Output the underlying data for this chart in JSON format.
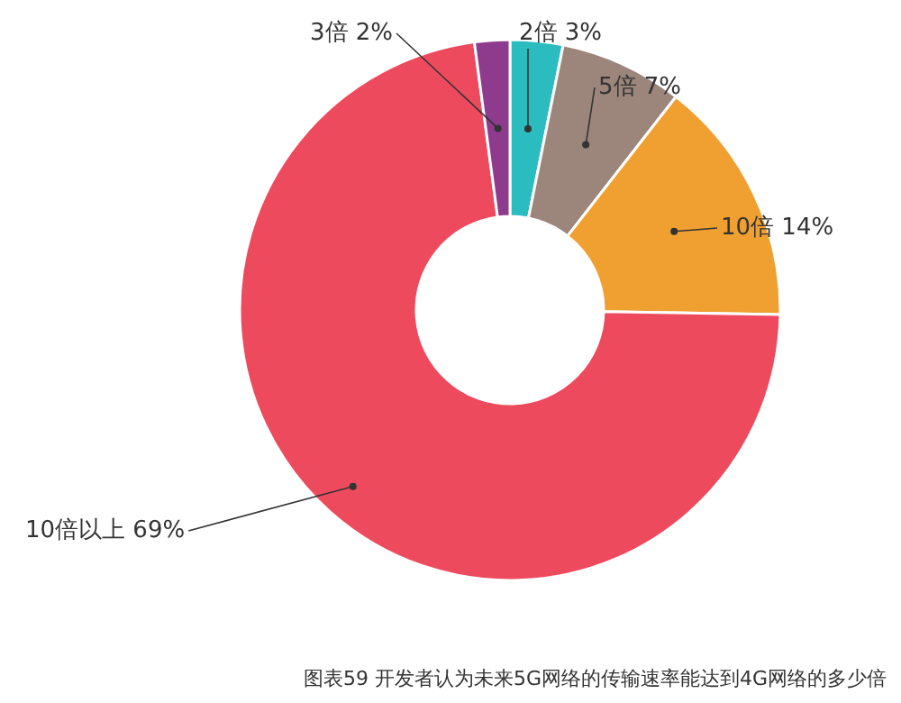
{
  "chart_data": {
    "type": "donut",
    "categories": [
      "2倍",
      "5倍",
      "10倍",
      "10倍以上",
      "3倍"
    ],
    "values": [
      3,
      7,
      14,
      69,
      2
    ],
    "value_labels": [
      "3%",
      "7%",
      "14%",
      "69%",
      "2%"
    ],
    "colors": [
      "#2bbcc0",
      "#9c857a",
      "#f0a030",
      "#ee4a5e",
      "#8e3b8e"
    ],
    "annotations": [
      "图表59 开发者认为未来5G网络的传输速率能达到4G网络的多少倍"
    ]
  }
}
